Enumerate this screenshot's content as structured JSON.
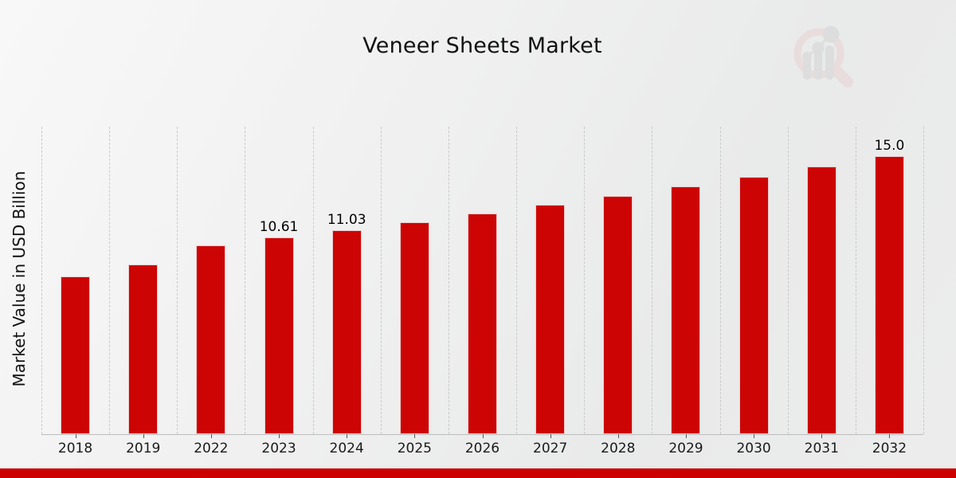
{
  "title": "Veneer Sheets Market",
  "y_axis_label": "Market Value in USD Billion",
  "colors": {
    "bar_red": "#cc0404",
    "footer_red": "#cc0000",
    "gridline": "#c9c9c9",
    "axis_line": "#bdbdbd",
    "text": "#111111"
  },
  "watermark": {
    "name": "magnifier-bar-chart-logo",
    "ring_color": "#e9d2d2",
    "bars_color": "#d4d4d6"
  },
  "chart_data": {
    "type": "bar",
    "title": "Veneer Sheets Market",
    "xlabel": "",
    "ylabel": "Market Value in USD Billion",
    "categories": [
      "2018",
      "2019",
      "2022",
      "2023",
      "2024",
      "2025",
      "2026",
      "2027",
      "2028",
      "2029",
      "2030",
      "2031",
      "2032"
    ],
    "values": [
      8.5,
      9.15,
      10.2,
      10.61,
      11.03,
      11.46,
      11.91,
      12.38,
      12.86,
      13.37,
      13.9,
      14.44,
      15.0
    ],
    "bar_labels": [
      "",
      "",
      "",
      "10.61",
      "11.03",
      "",
      "",
      "",
      "",
      "",
      "",
      "",
      "15.0"
    ],
    "ylim": [
      0,
      16.6
    ],
    "y_axis_ticks_visible": false,
    "grid": "vertical-dashed-category-boundaries",
    "legend": "none",
    "bar_color": "#cc0404"
  }
}
